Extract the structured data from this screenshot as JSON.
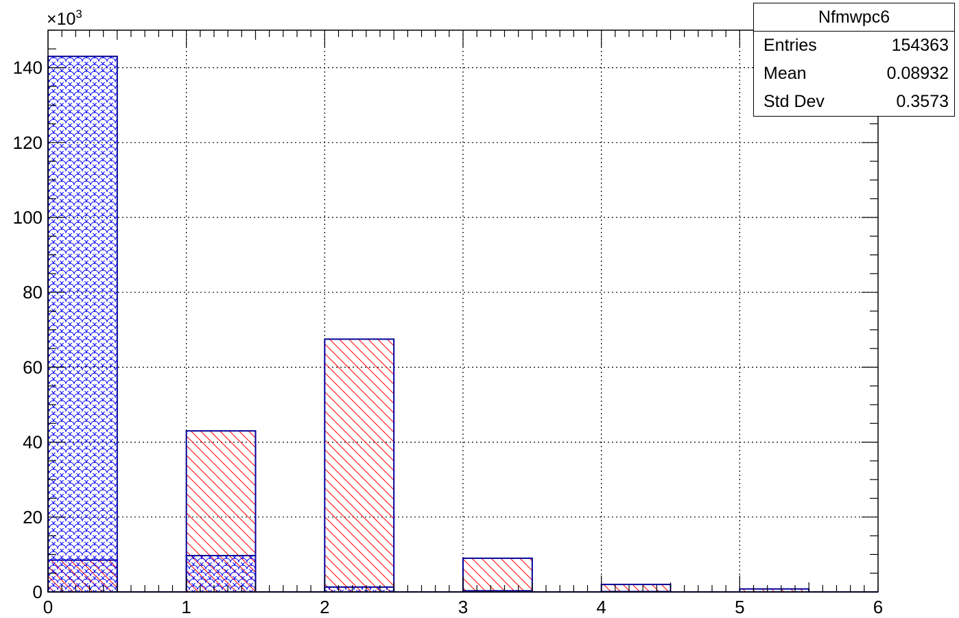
{
  "chart_data": {
    "type": "bar",
    "title": "Nfmwpc6",
    "xlim": [
      0,
      6
    ],
    "ylim": [
      0,
      150000
    ],
    "y_exponent_label": "×10",
    "y_exponent_power": "3",
    "x_ticks": [
      "0",
      "1",
      "2",
      "3",
      "4",
      "5",
      "6"
    ],
    "y_ticks": [
      "0",
      "20",
      "40",
      "60",
      "80",
      "100",
      "120",
      "140"
    ],
    "grid": true,
    "bin_width": 0.5,
    "series": [
      {
        "fill_pattern": "red diagonal hatch",
        "color": "#ff0000",
        "x": [
          0,
          1,
          2,
          3,
          4,
          5
        ],
        "values": [
          8500,
          43000,
          67500,
          9000,
          2000,
          800
        ]
      },
      {
        "fill_pattern": "blue scale hatch",
        "color": "#0000ff",
        "x": [
          0,
          1,
          2,
          3,
          4,
          5
        ],
        "values": [
          143000,
          9700,
          1300,
          300,
          100,
          0
        ]
      }
    ],
    "outline_color": "#000099"
  },
  "stats": {
    "title": "Nfmwpc6",
    "rows": [
      {
        "label": "Entries",
        "value": "154363"
      },
      {
        "label": "Mean",
        "value": "0.08932"
      },
      {
        "label": "Std Dev",
        "value": "0.3573"
      }
    ]
  }
}
